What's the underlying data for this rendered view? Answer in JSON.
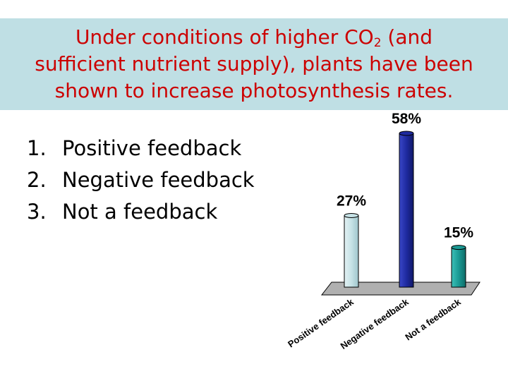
{
  "title": {
    "before": "Under conditions of higher CO",
    "sub": "2",
    "after_line1": " (and",
    "line2": "sufficient nutrient supply), plants have been",
    "line3": "shown to increase photosynthesis rates."
  },
  "answers": [
    {
      "num": "1.",
      "text": "Positive feedback"
    },
    {
      "num": "2.",
      "text": "Negative feedback"
    },
    {
      "num": "3.",
      "text": "Not a feedback"
    }
  ],
  "chart_data": {
    "type": "bar",
    "categories": [
      "Positive feedback",
      "Negative feedback",
      "Not a feedback"
    ],
    "values": [
      27,
      58,
      15
    ],
    "value_labels": [
      "27%",
      "58%",
      "15%"
    ],
    "ylim": [
      0,
      58
    ],
    "grid": false,
    "colors": [
      "#c6e2e6",
      "#1e2aa0",
      "#1a9a94"
    ]
  }
}
